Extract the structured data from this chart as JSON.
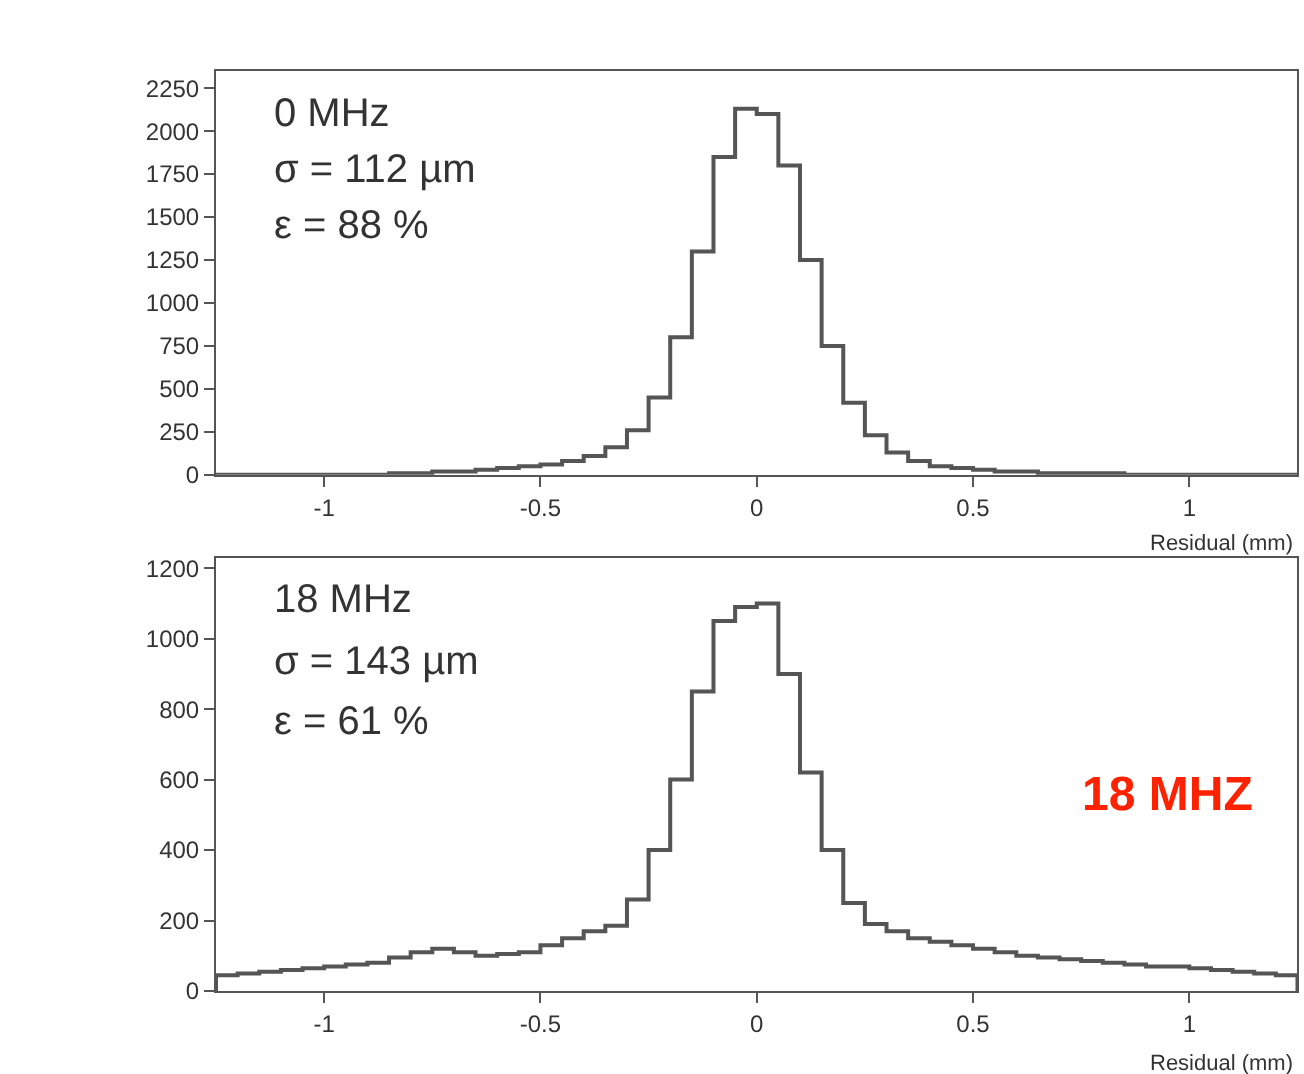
{
  "chart_data": [
    {
      "type": "histogram",
      "xlabel": "Residual (mm)",
      "annotations": [
        "0 MHz",
        "σ = 112 µm",
        "ε = 88 %"
      ],
      "bins": [
        -1.25,
        -1.2,
        -1.15,
        -1.1,
        -1.05,
        -1.0,
        -0.95,
        -0.9,
        -0.85,
        -0.8,
        -0.75,
        -0.7,
        -0.65,
        -0.6,
        -0.55,
        -0.5,
        -0.45,
        -0.4,
        -0.35,
        -0.3,
        -0.25,
        -0.2,
        -0.15,
        -0.1,
        -0.05,
        0.0,
        0.05,
        0.1,
        0.15,
        0.2,
        0.25,
        0.3,
        0.35,
        0.4,
        0.45,
        0.5,
        0.55,
        0.6,
        0.65,
        0.7,
        0.75,
        0.8,
        0.85,
        0.9,
        0.95,
        1.0,
        1.05,
        1.1,
        1.15,
        1.2,
        1.25
      ],
      "values": [
        0,
        0,
        0,
        0,
        0,
        0,
        0,
        0,
        10,
        10,
        20,
        20,
        30,
        40,
        50,
        60,
        80,
        110,
        160,
        260,
        450,
        800,
        1300,
        1850,
        2130,
        2100,
        1800,
        1250,
        750,
        420,
        230,
        130,
        80,
        50,
        40,
        30,
        20,
        20,
        10,
        10,
        10,
        10,
        0,
        0,
        0,
        0,
        0,
        0,
        0,
        0
      ],
      "color": "#555555",
      "xlim": [
        -1.25,
        1.25
      ],
      "xticks": [
        -1,
        -0.5,
        0,
        0.5,
        1
      ],
      "ylim": [
        0,
        2350
      ],
      "yticks": [
        0,
        250,
        500,
        750,
        1000,
        1250,
        1500,
        1750,
        2000,
        2250
      ]
    },
    {
      "type": "histogram",
      "xlabel": "Residual (mm)",
      "annotations": [
        "18 MHz",
        "σ = 143 µm",
        "ε = 61 %",
        "18 MHZ"
      ],
      "bins": [
        -1.25,
        -1.2,
        -1.15,
        -1.1,
        -1.05,
        -1.0,
        -0.95,
        -0.9,
        -0.85,
        -0.8,
        -0.75,
        -0.7,
        -0.65,
        -0.6,
        -0.55,
        -0.5,
        -0.45,
        -0.4,
        -0.35,
        -0.3,
        -0.25,
        -0.2,
        -0.15,
        -0.1,
        -0.05,
        0.0,
        0.05,
        0.1,
        0.15,
        0.2,
        0.25,
        0.3,
        0.35,
        0.4,
        0.45,
        0.5,
        0.55,
        0.6,
        0.65,
        0.7,
        0.75,
        0.8,
        0.85,
        0.9,
        0.95,
        1.0,
        1.05,
        1.1,
        1.15,
        1.2,
        1.25
      ],
      "values": [
        45,
        50,
        55,
        60,
        65,
        70,
        75,
        80,
        95,
        110,
        120,
        110,
        100,
        105,
        110,
        130,
        150,
        170,
        185,
        260,
        400,
        600,
        850,
        1050,
        1090,
        1100,
        900,
        620,
        400,
        250,
        190,
        170,
        150,
        140,
        130,
        120,
        110,
        100,
        95,
        90,
        85,
        80,
        75,
        70,
        70,
        65,
        60,
        55,
        50,
        45
      ],
      "color": "#555555",
      "xlim": [
        -1.25,
        1.25
      ],
      "xticks": [
        -1,
        -0.5,
        0,
        0.5,
        1
      ],
      "ylim": [
        0,
        1230
      ],
      "yticks": [
        0,
        200,
        400,
        600,
        800,
        1000,
        1200
      ]
    }
  ]
}
